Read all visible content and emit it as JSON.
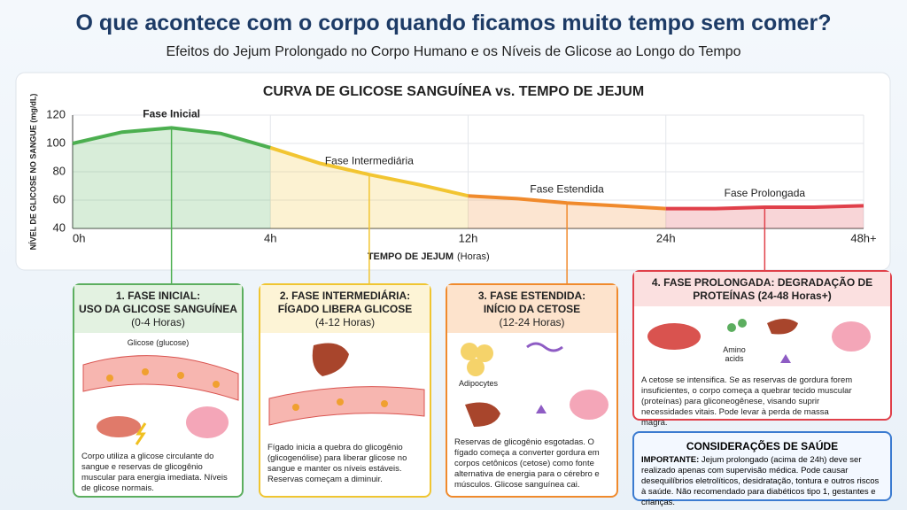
{
  "header": {
    "title": "O que acontece com o corpo quando ficamos muito tempo sem comer?",
    "subtitle": "Efeitos do Jejum Prolongado no Corpo Humano e os Níveis de Glicose ao Longo do Tempo"
  },
  "chart_data": {
    "type": "line",
    "title": "CURVA DE GLICOSE SANGUÍNEA vs. TEMPO DE JEJUM",
    "y_label": "NÍVEL DE GLICOSE NO SANGUE (mg/dL)",
    "x_label": "TEMPO DE JEJUM",
    "x_unit": "(Horas)",
    "xlim": [
      0,
      48
    ],
    "xticks": [
      {
        "value": 0,
        "label": "0h"
      },
      {
        "value": 4,
        "label": "4h"
      },
      {
        "value": 12,
        "label": "12h"
      },
      {
        "value": 24,
        "label": "24h"
      },
      {
        "value": 48,
        "label": "48h+"
      }
    ],
    "ylim": [
      40,
      120
    ],
    "yticks": [
      40,
      60,
      80,
      100,
      120
    ],
    "grid": true,
    "series": [
      {
        "name": "Fase Inicial",
        "color": "#4caf50",
        "x": [
          0,
          1,
          2,
          3,
          4
        ],
        "values": [
          100,
          108,
          111,
          107,
          97
        ]
      },
      {
        "name": "Fase Intermediária",
        "color": "#f2c531",
        "x": [
          4,
          6,
          8,
          10,
          12
        ],
        "values": [
          97,
          86,
          78,
          71,
          63
        ]
      },
      {
        "name": "Fase Estendida",
        "color": "#f08a2c",
        "x": [
          12,
          15,
          18,
          21,
          24
        ],
        "values": [
          63,
          61,
          58,
          56,
          54
        ]
      },
      {
        "name": "Fase Prolongada",
        "color": "#e0404a",
        "x": [
          24,
          30,
          36,
          42,
          48
        ],
        "values": [
          54,
          54,
          55,
          55,
          56
        ]
      }
    ]
  },
  "cards": [
    {
      "title": "1. FASE INICIAL:\nUSO DA GLICOSE SANGUÍNEA",
      "range": "(0-4 Horas)",
      "labels": [
        "Glicose (glucose)"
      ],
      "text": "Corpo utiliza a glicose circulante do sangue e reservas de glicogênio muscular para energia imediata. Níveis de glicose normais."
    },
    {
      "title": "2. FASE INTERMEDIÁRIA:\nFÍGADO LIBERA GLICOSE",
      "range": "(4-12 Horas)",
      "labels": [],
      "text": "Fígado inicia a quebra do glicogênio (glicogenólise) para liberar glicose no sangue e manter os níveis estáveis. Reservas começam a diminuir."
    },
    {
      "title": "3. FASE ESTENDIDA:\nINÍCIO DA CETOSE",
      "range": "(12-24 Horas)",
      "labels": [
        "Adipocytes"
      ],
      "text": "Reservas de glicogênio esgotadas. O fígado começa a converter gordura em corpos cetônicos (cetose) como fonte alternativa de energia para o cérebro e músculos. Glicose sanguínea cai."
    },
    {
      "title": "4. FASE PROLONGADA: DEGRADAÇÃO DE PROTEÍNAS",
      "range": "(24-48 Horas+)",
      "labels": [
        "Amino\nacids"
      ],
      "text": "A cetose se intensifica. Se as reservas de gordura forem insuficientes, o corpo começa a quebrar tecido muscular (proteínas) para gliconeogênese, visando suprir necessidades vitais. Pode levar à perda de massa magra."
    }
  ],
  "note": {
    "title": "CONSIDERAÇÕES DE SAÚDE",
    "lead": "IMPORTANTE:",
    "text": "Jejum prolongado (acima de 24h) deve ser realizado apenas com supervisão médica. Pode causar desequilíbrios eletrolíticos, desidratação, tontura e outros riscos à saúde. Não recomendado para diabéticos tipo 1, gestantes e crianças."
  }
}
